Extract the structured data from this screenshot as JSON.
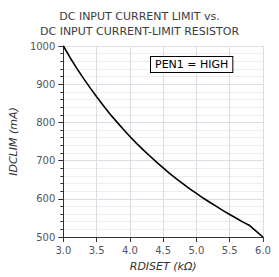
{
  "chart_data": {
    "type": "line",
    "title": "DC INPUT CURRENT LIMIT vs.\nDC INPUT CURRENT-LIMIT RESISTOR",
    "xlabel": "RDISET (kΩ)",
    "ylabel": "IDCLIM (mA)",
    "annotations": [
      "PEN1 = HIGH"
    ],
    "x": [
      3.0,
      3.1,
      3.2,
      3.3,
      3.4,
      3.5,
      3.6,
      3.7,
      3.8,
      3.9,
      4.0,
      4.1,
      4.2,
      4.3,
      4.4,
      4.5,
      4.6,
      4.7,
      4.8,
      4.9,
      5.0,
      5.1,
      5.2,
      5.3,
      5.4,
      5.5,
      5.6,
      5.7,
      5.8,
      5.9,
      6.0
    ],
    "values": [
      1000,
      970,
      942,
      916,
      891,
      867,
      844,
      822,
      802,
      782,
      763,
      745,
      728,
      712,
      696,
      681,
      666,
      652,
      639,
      626,
      614,
      602,
      591,
      580,
      569,
      559,
      549,
      539,
      530,
      515,
      500
    ],
    "color": "#000000",
    "xlim": [
      3.0,
      6.0
    ],
    "ylim": [
      500,
      1000
    ],
    "xticks": [
      {
        "value": 3.0,
        "label": "3.0"
      },
      3.5,
      {
        "value": 4.0,
        "label": "4.0"
      },
      4.5,
      {
        "value": 5.0,
        "label": "5.0"
      },
      5.5,
      {
        "value": 6.0,
        "label": "6.0"
      }
    ],
    "yticks": [
      500,
      600,
      700,
      800,
      900,
      1000
    ],
    "grid": true
  }
}
